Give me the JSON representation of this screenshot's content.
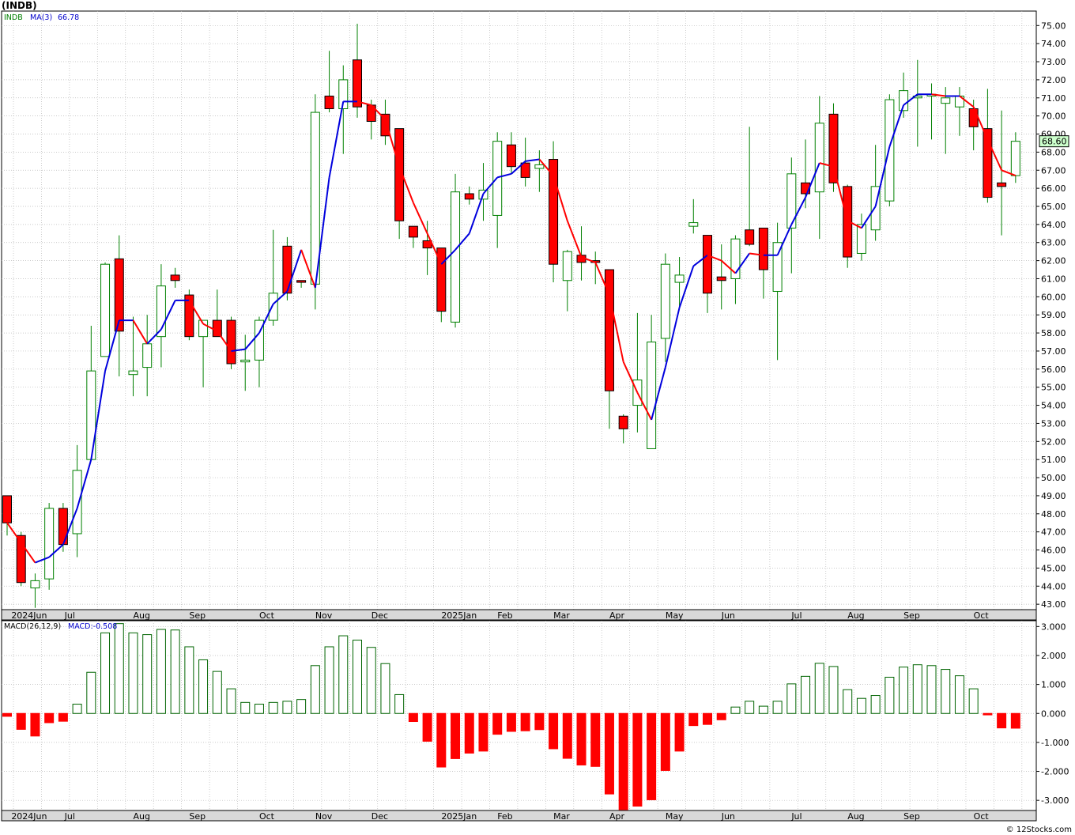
{
  "chart_title": "(INDB)",
  "footer": "© 12Stocks.com",
  "colors": {
    "up": "#000000",
    "down": "#ff0000",
    "wick": "#008000",
    "ma_up": "#0000dd",
    "ma_down": "#ff0000",
    "grid": "#b8b8b8",
    "macd_pos": "#006400",
    "macd_neg": "#ff0000"
  },
  "chart_data": [
    {
      "type": "candlestick",
      "legend": {
        "symbol": "INDB",
        "ma_label": "MA(3)",
        "ma_value": "66.78"
      },
      "last_price_label": "68.60",
      "ylim": [
        42.7,
        75.8
      ],
      "y_ticks": [
        "43.00",
        "44.00",
        "45.00",
        "46.00",
        "47.00",
        "48.00",
        "49.00",
        "50.00",
        "51.00",
        "52.00",
        "53.00",
        "54.00",
        "55.00",
        "56.00",
        "57.00",
        "58.00",
        "59.00",
        "60.00",
        "61.00",
        "62.00",
        "63.00",
        "64.00",
        "65.00",
        "66.00",
        "67.00",
        "68.00",
        "69.00",
        "70.00",
        "71.00",
        "72.00",
        "73.00",
        "74.00",
        "75.00"
      ],
      "x_labels": [
        "2024Jun",
        "Jul",
        "Aug",
        "Sep",
        "Oct",
        "Nov",
        "Dec",
        "2025Jan",
        "Feb",
        "Mar",
        "Apr",
        "May",
        "Jun",
        "Jul",
        "Aug",
        "Sep",
        "Oct"
      ],
      "candles": [
        {
          "o": 49.0,
          "h": 49.0,
          "l": 46.8,
          "c": 47.5
        },
        {
          "o": 46.8,
          "h": 47.0,
          "l": 44.0,
          "c": 44.2
        },
        {
          "o": 43.9,
          "h": 44.7,
          "l": 42.8,
          "c": 44.3
        },
        {
          "o": 44.4,
          "h": 48.6,
          "l": 43.8,
          "c": 48.3
        },
        {
          "o": 48.3,
          "h": 48.6,
          "l": 45.9,
          "c": 46.3
        },
        {
          "o": 46.9,
          "h": 51.8,
          "l": 45.6,
          "c": 50.4
        },
        {
          "o": 51.0,
          "h": 58.4,
          "l": 51.0,
          "c": 55.9
        },
        {
          "o": 56.7,
          "h": 61.9,
          "l": 56.7,
          "c": 61.8
        },
        {
          "o": 62.1,
          "h": 63.4,
          "l": 55.6,
          "c": 58.1
        },
        {
          "o": 55.7,
          "h": 58.9,
          "l": 54.5,
          "c": 55.9
        },
        {
          "o": 56.1,
          "h": 59.0,
          "l": 54.5,
          "c": 57.4
        },
        {
          "o": 57.8,
          "h": 61.8,
          "l": 56.1,
          "c": 60.6
        },
        {
          "o": 61.2,
          "h": 61.6,
          "l": 60.5,
          "c": 60.9
        },
        {
          "o": 60.1,
          "h": 60.4,
          "l": 57.6,
          "c": 57.8
        },
        {
          "o": 57.8,
          "h": 58.7,
          "l": 55.0,
          "c": 58.7
        },
        {
          "o": 58.7,
          "h": 60.4,
          "l": 57.8,
          "c": 57.8
        },
        {
          "o": 58.7,
          "h": 58.9,
          "l": 56.0,
          "c": 56.3
        },
        {
          "o": 56.4,
          "h": 57.9,
          "l": 54.8,
          "c": 56.5
        },
        {
          "o": 56.5,
          "h": 58.9,
          "l": 55.0,
          "c": 58.7
        },
        {
          "o": 58.7,
          "h": 63.7,
          "l": 58.4,
          "c": 60.2
        },
        {
          "o": 62.8,
          "h": 63.3,
          "l": 59.8,
          "c": 60.2
        },
        {
          "o": 60.9,
          "h": 60.9,
          "l": 60.5,
          "c": 60.8
        },
        {
          "o": 60.7,
          "h": 71.2,
          "l": 59.3,
          "c": 70.2
        },
        {
          "o": 71.1,
          "h": 73.6,
          "l": 70.2,
          "c": 70.4
        },
        {
          "o": 70.4,
          "h": 72.8,
          "l": 67.9,
          "c": 72.0
        },
        {
          "o": 73.1,
          "h": 75.1,
          "l": 69.9,
          "c": 70.5
        },
        {
          "o": 70.6,
          "h": 70.9,
          "l": 68.7,
          "c": 69.7
        },
        {
          "o": 70.1,
          "h": 70.9,
          "l": 68.4,
          "c": 68.9
        },
        {
          "o": 69.3,
          "h": 69.3,
          "l": 63.2,
          "c": 64.2
        },
        {
          "o": 63.9,
          "h": 63.9,
          "l": 62.7,
          "c": 63.3
        },
        {
          "o": 63.1,
          "h": 64.2,
          "l": 61.2,
          "c": 62.7
        },
        {
          "o": 62.7,
          "h": 62.7,
          "l": 58.6,
          "c": 59.2
        },
        {
          "o": 58.6,
          "h": 66.8,
          "l": 58.3,
          "c": 65.8
        },
        {
          "o": 65.7,
          "h": 66.1,
          "l": 65.1,
          "c": 65.4
        },
        {
          "o": 65.4,
          "h": 67.4,
          "l": 64.2,
          "c": 65.9
        },
        {
          "o": 64.5,
          "h": 69.1,
          "l": 62.7,
          "c": 68.6
        },
        {
          "o": 68.4,
          "h": 69.1,
          "l": 66.8,
          "c": 67.2
        },
        {
          "o": 67.4,
          "h": 68.8,
          "l": 66.1,
          "c": 66.6
        },
        {
          "o": 67.1,
          "h": 68.1,
          "l": 65.8,
          "c": 67.3
        },
        {
          "o": 67.6,
          "h": 68.6,
          "l": 60.8,
          "c": 61.8
        },
        {
          "o": 60.9,
          "h": 62.6,
          "l": 59.2,
          "c": 62.5
        },
        {
          "o": 62.3,
          "h": 63.9,
          "l": 60.9,
          "c": 61.9
        },
        {
          "o": 62.0,
          "h": 62.5,
          "l": 60.7,
          "c": 61.9
        },
        {
          "o": 61.5,
          "h": 61.5,
          "l": 52.7,
          "c": 54.8
        },
        {
          "o": 53.4,
          "h": 53.5,
          "l": 51.9,
          "c": 52.7
        },
        {
          "o": 54.0,
          "h": 59.1,
          "l": 52.5,
          "c": 55.4
        },
        {
          "o": 51.6,
          "h": 59.0,
          "l": 51.6,
          "c": 57.5
        },
        {
          "o": 57.7,
          "h": 62.4,
          "l": 56.4,
          "c": 61.8
        },
        {
          "o": 60.8,
          "h": 62.2,
          "l": 59.4,
          "c": 61.2
        },
        {
          "o": 63.9,
          "h": 65.4,
          "l": 63.5,
          "c": 64.1
        },
        {
          "o": 63.4,
          "h": 63.4,
          "l": 59.1,
          "c": 60.2
        },
        {
          "o": 61.1,
          "h": 62.9,
          "l": 59.3,
          "c": 60.9
        },
        {
          "o": 61.0,
          "h": 63.4,
          "l": 59.6,
          "c": 63.2
        },
        {
          "o": 63.7,
          "h": 69.4,
          "l": 62.8,
          "c": 62.9
        },
        {
          "o": 63.8,
          "h": 63.8,
          "l": 59.9,
          "c": 61.5
        },
        {
          "o": 60.3,
          "h": 64.1,
          "l": 56.5,
          "c": 63.0
        },
        {
          "o": 63.8,
          "h": 67.7,
          "l": 61.3,
          "c": 66.8
        },
        {
          "o": 66.3,
          "h": 68.7,
          "l": 64.9,
          "c": 65.7
        },
        {
          "o": 65.8,
          "h": 71.1,
          "l": 63.2,
          "c": 69.6
        },
        {
          "o": 70.1,
          "h": 70.7,
          "l": 65.8,
          "c": 66.3
        },
        {
          "o": 66.1,
          "h": 66.2,
          "l": 61.6,
          "c": 62.2
        },
        {
          "o": 62.4,
          "h": 64.6,
          "l": 62.0,
          "c": 64.0
        },
        {
          "o": 63.7,
          "h": 68.4,
          "l": 63.1,
          "c": 66.1
        },
        {
          "o": 65.3,
          "h": 71.2,
          "l": 65.0,
          "c": 70.9
        },
        {
          "o": 70.3,
          "h": 72.4,
          "l": 69.9,
          "c": 71.4
        },
        {
          "o": 71.0,
          "h": 73.1,
          "l": 68.3,
          "c": 71.1
        },
        {
          "o": 71.1,
          "h": 71.8,
          "l": 68.7,
          "c": 71.2
        },
        {
          "o": 70.7,
          "h": 71.6,
          "l": 67.9,
          "c": 71.0
        },
        {
          "o": 70.5,
          "h": 71.6,
          "l": 68.9,
          "c": 71.1
        },
        {
          "o": 70.4,
          "h": 70.9,
          "l": 68.1,
          "c": 69.4
        },
        {
          "o": 69.3,
          "h": 71.5,
          "l": 65.2,
          "c": 65.5
        },
        {
          "o": 66.3,
          "h": 70.3,
          "l": 63.4,
          "c": 66.1
        },
        {
          "o": 66.7,
          "h": 69.1,
          "l": 66.3,
          "c": 68.6
        }
      ],
      "ma3": [
        47.5,
        null,
        45.3,
        45.6,
        46.3,
        48.3,
        51.0,
        55.9,
        58.7,
        58.7,
        57.4,
        58.2,
        59.8,
        59.8,
        58.5,
        58.1,
        57.0,
        57.1,
        58.0,
        59.6,
        60.3,
        62.6,
        60.5,
        66.6,
        70.8,
        70.8,
        70.6,
        69.8,
        67.2,
        65.2,
        63.5,
        61.8,
        62.6,
        63.5,
        65.7,
        66.6,
        66.8,
        67.5,
        67.6,
        66.7,
        64.2,
        62.2,
        61.9,
        60.1,
        56.4,
        54.7,
        53.2,
        56.1,
        59.4,
        61.7,
        62.3,
        62.0,
        61.3,
        62.4,
        62.3,
        62.3,
        64.0,
        65.5,
        67.4,
        67.2,
        64.2,
        63.8,
        65.0,
        68.3,
        70.6,
        71.2,
        71.2,
        71.1,
        71.1,
        70.5,
        68.7,
        67.0,
        66.7
      ],
      "macd": {
        "label": "MACD(26,12,9)",
        "value_label": "MACD:-0.508",
        "ylim": [
          -3.35,
          3.2
        ],
        "y_ticks": [
          "-3.000",
          "-2.000",
          "-1.000",
          "0.000",
          "1.000",
          "2.000",
          "3.000"
        ],
        "values": [
          -0.1,
          -0.55,
          -0.78,
          -0.32,
          -0.27,
          0.32,
          1.42,
          2.78,
          3.1,
          2.78,
          2.72,
          2.9,
          2.88,
          2.3,
          1.85,
          1.45,
          0.85,
          0.38,
          0.32,
          0.38,
          0.42,
          0.48,
          1.65,
          2.3,
          2.68,
          2.53,
          2.28,
          1.72,
          0.65,
          -0.28,
          -0.96,
          -1.85,
          -1.56,
          -1.37,
          -1.3,
          -0.72,
          -0.62,
          -0.6,
          -0.56,
          -1.22,
          -1.55,
          -1.78,
          -1.83,
          -2.78,
          -3.32,
          -3.2,
          -2.98,
          -1.97,
          -1.3,
          -0.42,
          -0.38,
          -0.22,
          0.22,
          0.42,
          0.25,
          0.42,
          1.02,
          1.28,
          1.73,
          1.62,
          0.82,
          0.52,
          0.62,
          1.25,
          1.6,
          1.68,
          1.65,
          1.52,
          1.3,
          0.85,
          -0.05,
          -0.5,
          -0.51
        ]
      }
    }
  ]
}
